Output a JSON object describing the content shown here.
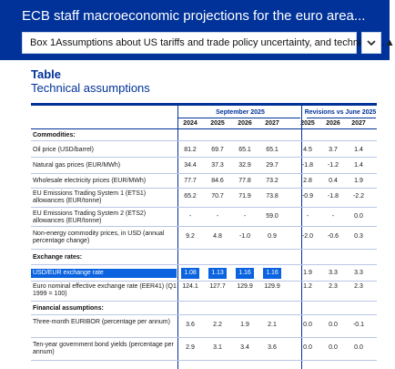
{
  "header": {
    "title": "ECB staff macroeconomic projections for the euro area...",
    "dropdown_label": "Box 1Assumptions about US tariffs and trade policy uncertainty, and technical ..."
  },
  "table": {
    "heading": "Table",
    "subtitle": "Technical assumptions",
    "group_sep": "September 2025",
    "group_rev": "Revisions vs June 2025",
    "years_sep": [
      "2024",
      "2025",
      "2026",
      "2027"
    ],
    "years_rev": [
      "2025",
      "2026",
      "2027"
    ],
    "sections": {
      "commodities": "Commodities:",
      "exchange": "Exchange rates:",
      "financial": "Financial assumptions:"
    },
    "rows": [
      {
        "label": "Oil price (USD/barrel)",
        "values": [
          "81.2",
          "69.7",
          "65.1",
          "65.1",
          "4.5",
          "3.7",
          "1.4"
        ]
      },
      {
        "label": "Natural gas prices (EUR/MWh)",
        "values": [
          "34.4",
          "37.3",
          "32.9",
          "29.7",
          "-1.8",
          "-1.2",
          "1.4"
        ]
      },
      {
        "label": "Wholesale electricity prices (EUR/MWh)",
        "values": [
          "77.7",
          "84.6",
          "77.8",
          "73.2",
          "2.8",
          "0.4",
          "1.9"
        ]
      },
      {
        "label": "EU Emissions Trading System 1 (ETS1) allowances (EUR/tonne)",
        "values": [
          "65.2",
          "70.7",
          "71.9",
          "73.8",
          "-0.9",
          "-1.8",
          "-2.2"
        ]
      },
      {
        "label": "EU Emissions Trading System 2 (ETS2) allowances (EUR/tonne)",
        "values": [
          "-",
          "-",
          "-",
          "59.0",
          "-",
          "-",
          "0.0"
        ]
      },
      {
        "label": "Non-energy commodity prices, in USD (annual percentage change)",
        "values": [
          "9.2",
          "4.8",
          "-1.0",
          "0.9",
          "-2.0",
          "-0.6",
          "0.3"
        ]
      },
      {
        "label": "USD/EUR exchange rate",
        "values": [
          "1.08",
          "1.13",
          "1.16",
          "1.16",
          "1.9",
          "3.3",
          "3.3"
        ]
      },
      {
        "label": "Euro nominal effective exchange rate (EER41) (Q1 1999 = 100)",
        "values": [
          "124.1",
          "127.7",
          "129.9",
          "129.9",
          "1.2",
          "2.3",
          "2.3"
        ]
      },
      {
        "label": "Three-month EURIBOR (percentage per annum)",
        "values": [
          "3.6",
          "2.2",
          "1.9",
          "2.1",
          "0.0",
          "0.0",
          "-0.1"
        ]
      },
      {
        "label": "Ten-year government bond yields (percentage per annum)",
        "values": [
          "2.9",
          "3.1",
          "3.4",
          "3.6",
          "0.0",
          "0.0",
          "0.0"
        ]
      }
    ]
  },
  "icons": {
    "dropdown_caret": "caret-down-icon",
    "expand_button": "chevron-down-icon"
  },
  "colors": {
    "brand": "#003299",
    "highlight": "#0b63e0"
  }
}
